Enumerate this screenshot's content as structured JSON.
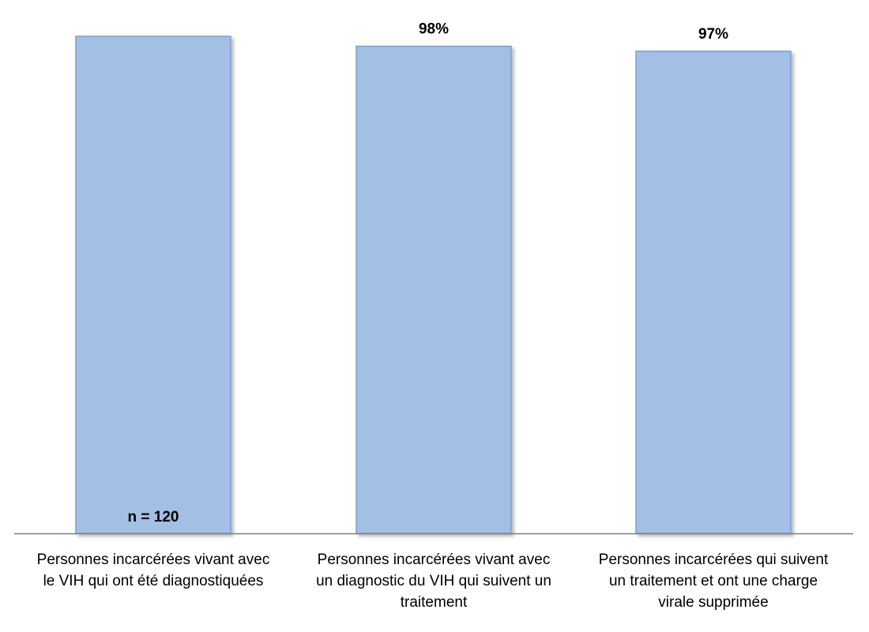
{
  "chart_data": {
    "type": "bar",
    "categories": [
      [
        "Personnes incarcérées vivant avec",
        "le VIH qui ont été diagnostiquées"
      ],
      [
        "Personnes incarcérées vivant avec",
        "un diagnostic du VIH qui suivent un",
        "traitement"
      ],
      [
        "Personnes incarcérées qui suivent",
        "un traitement et ont une charge",
        "virale supprimée"
      ]
    ],
    "values": [
      100,
      98,
      97
    ],
    "data_labels": [
      "",
      "98%",
      "97%"
    ],
    "annotations": [
      {
        "category_index": 0,
        "text": "n = 120",
        "position": "inside-bottom"
      }
    ],
    "ylim": [
      0,
      100
    ],
    "grid": false,
    "legend": "none",
    "colors": {
      "bar_fill": "#a3bfe4",
      "bar_edge": "#7f9fce",
      "axis": "#7f7f7f",
      "text": "#000000"
    }
  }
}
